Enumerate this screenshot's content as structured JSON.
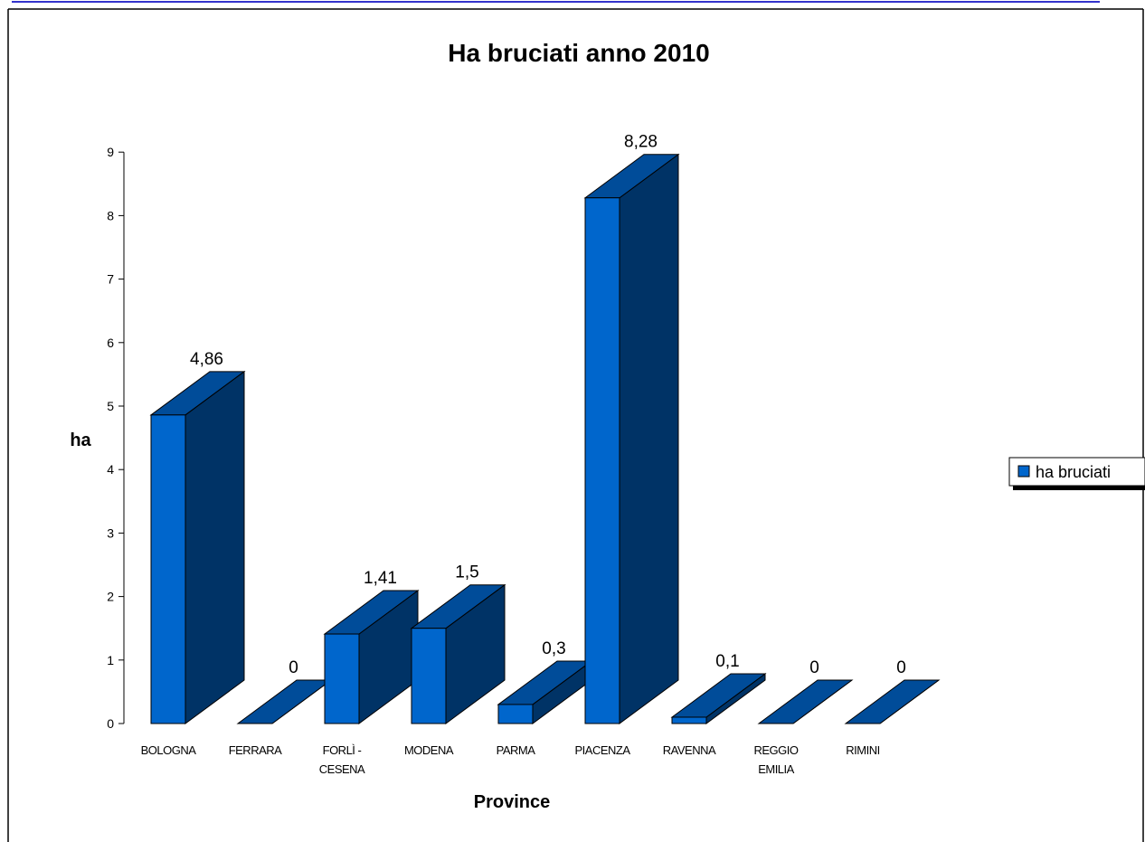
{
  "chart_data": {
    "type": "bar",
    "title": "Ha bruciati anno 2010",
    "xlabel": "Province",
    "ylabel": "ha",
    "ylim": [
      0,
      9
    ],
    "yticks": [
      0,
      1,
      2,
      3,
      4,
      5,
      6,
      7,
      8,
      9
    ],
    "categories": [
      [
        "BOLOGNA"
      ],
      [
        "FERRARA"
      ],
      [
        "FORLÌ -",
        "CESENA"
      ],
      [
        "MODENA"
      ],
      [
        "PARMA"
      ],
      [
        "PIACENZA"
      ],
      [
        "RAVENNA"
      ],
      [
        "REGGIO",
        "EMILIA"
      ],
      [
        "RIMINI"
      ]
    ],
    "series": [
      {
        "name": "ha bruciati",
        "values": [
          4.86,
          0,
          1.41,
          1.5,
          0.3,
          8.28,
          0.1,
          0,
          0
        ],
        "labels": [
          "4,86",
          "0",
          "1,41",
          "1,5",
          "0,3",
          "8,28",
          "0,1",
          "0",
          "0"
        ]
      }
    ],
    "grid": false,
    "legend_position": "right",
    "colors": {
      "front": "#0066CC",
      "side": "#003366",
      "top": "#004C99",
      "frame_top": "#3333CC"
    }
  }
}
